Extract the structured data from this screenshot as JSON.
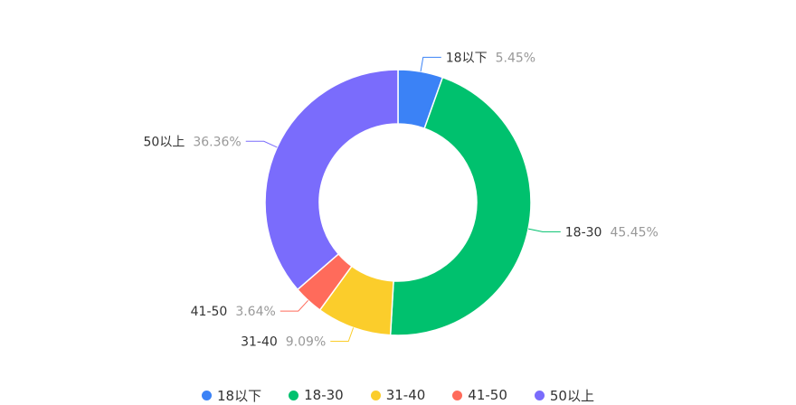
{
  "chart_data": {
    "type": "pie",
    "categories": [
      "18以下",
      "18-30",
      "31-40",
      "41-50",
      "50以上"
    ],
    "values": [
      5.45,
      45.45,
      9.09,
      3.64,
      36.36
    ],
    "labels": [
      "5.45%",
      "45.45%",
      "9.09%",
      "3.64%",
      "36.36%"
    ],
    "colors": [
      "#3b82f6",
      "#00c16e",
      "#fbcd2b",
      "#ff6b5b",
      "#7a6cfc"
    ],
    "donut": true,
    "legend_position": "bottom"
  }
}
